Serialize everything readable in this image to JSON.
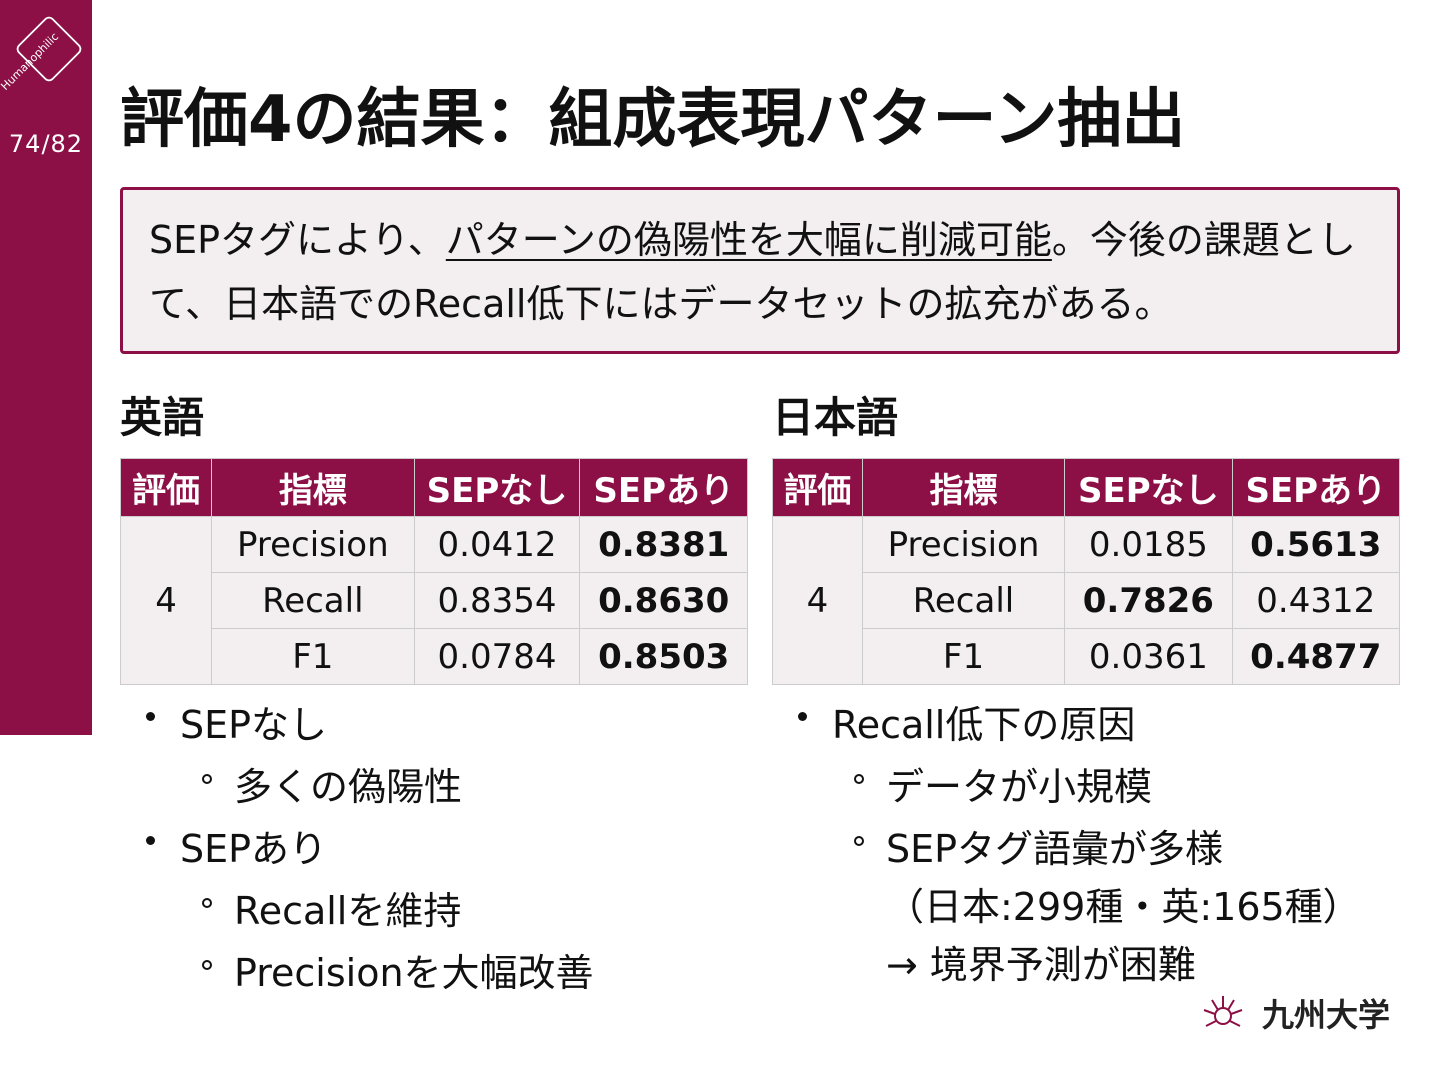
{
  "page_number": "74/82",
  "logo_text": "Humanophilic",
  "title": "評価4の結果：組成表現パターン抽出",
  "summary": {
    "before": "SEPタグにより、",
    "underlined": "パターンの偽陽性を大幅に削減可能",
    "after": "。今後の課題として、日本語でのRecall低下にはデータセットの拡充がある。"
  },
  "sections": [
    {
      "heading": "英語",
      "table": {
        "header": [
          "評価",
          "指標",
          "SEPなし",
          "SEPあり"
        ],
        "group": "4",
        "rows": [
          [
            "Precision",
            "0.0412",
            "0.8381"
          ],
          [
            "Recall",
            "0.8354",
            "0.8630"
          ],
          [
            "F1",
            "0.0784",
            "0.8503"
          ]
        ],
        "bold_column": [
          2,
          2,
          2
        ]
      },
      "bullets": [
        {
          "text": "SEPなし",
          "sub": [
            [
              "多くの偽陽性"
            ]
          ]
        },
        {
          "text": "SEPあり",
          "sub": [
            [
              "Recallを維持"
            ],
            [
              "Precisionを大幅改善"
            ]
          ]
        }
      ]
    },
    {
      "heading": "日本語",
      "table": {
        "header": [
          "評価",
          "指標",
          "SEPなし",
          "SEPあり"
        ],
        "group": "4",
        "rows": [
          [
            "Precision",
            "0.0185",
            "0.5613"
          ],
          [
            "Recall",
            "0.7826",
            "0.4312"
          ],
          [
            "F1",
            "0.0361",
            "0.4877"
          ]
        ],
        "bold_column": [
          2,
          1,
          2
        ]
      },
      "bullets": [
        {
          "text": "Recall低下の原因",
          "sub": [
            [
              "データが小規模"
            ],
            [
              "SEPタグ語彙が多様",
              "（日本:299種・英:165種）",
              "→ 境界予測が困難"
            ]
          ]
        }
      ]
    }
  ],
  "university": "九州大学"
}
